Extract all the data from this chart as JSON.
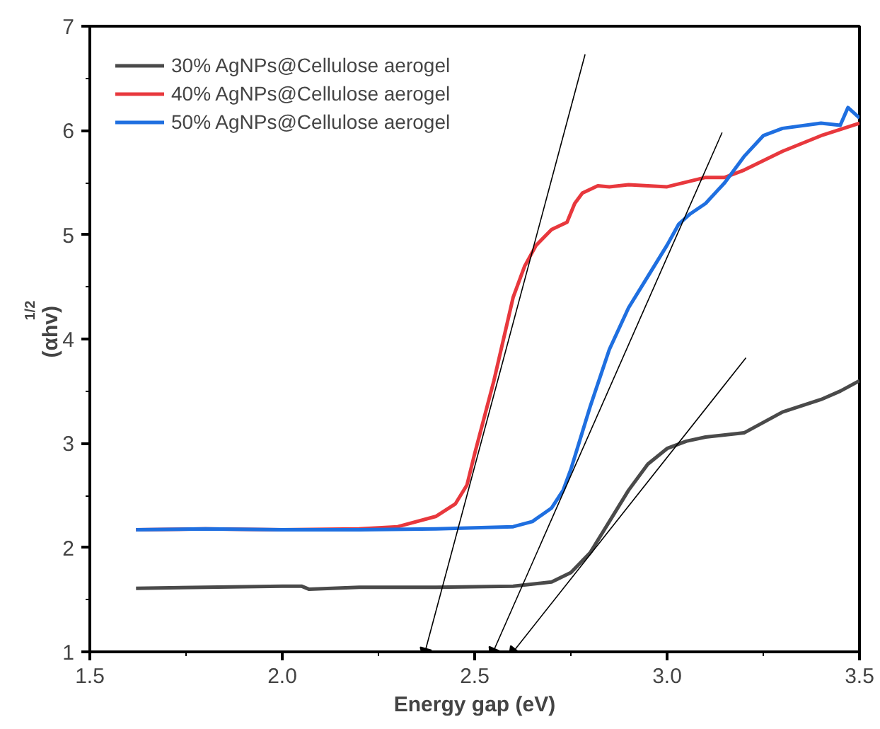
{
  "chart_data": {
    "type": "line",
    "xlabel": "Energy gap (eV)",
    "ylabel": "(αhv)$^{1/2}$",
    "xlim": [
      1.5,
      3.5
    ],
    "ylim": [
      1,
      7
    ],
    "xticks": [
      1.5,
      {
        "value": 2,
        "label": "2.0"
      },
      2.5,
      {
        "value": 3,
        "label": "3.0"
      },
      3.5
    ],
    "yticks": [
      1,
      2,
      3,
      4,
      5,
      6,
      7
    ],
    "grid": false,
    "legend": "top left",
    "marker": "none",
    "line_style": "solid",
    "series": [
      {
        "name": "30% AgNPs@Cellulose aerogel",
        "color": "#4a4a4a",
        "x": [
          1.62,
          1.8,
          2.0,
          2.05,
          2.07,
          2.2,
          2.4,
          2.6,
          2.7,
          2.75,
          2.8,
          2.85,
          2.9,
          2.95,
          3.0,
          3.05,
          3.1,
          3.2,
          3.25,
          3.3,
          3.4,
          3.45,
          3.5
        ],
        "values": [
          1.61,
          1.62,
          1.63,
          1.63,
          1.6,
          1.62,
          1.62,
          1.63,
          1.67,
          1.76,
          1.95,
          2.25,
          2.55,
          2.8,
          2.95,
          3.02,
          3.06,
          3.1,
          3.2,
          3.3,
          3.42,
          3.5,
          3.6
        ]
      },
      {
        "name": "40% AgNPs@Cellulose aerogel",
        "color": "#e8383d",
        "x": [
          1.62,
          1.8,
          2.0,
          2.2,
          2.3,
          2.4,
          2.45,
          2.48,
          2.5,
          2.55,
          2.6,
          2.63,
          2.66,
          2.7,
          2.74,
          2.76,
          2.78,
          2.82,
          2.85,
          2.9,
          3.0,
          3.1,
          3.15,
          3.2,
          3.3,
          3.4,
          3.5
        ],
        "values": [
          2.17,
          2.18,
          2.17,
          2.18,
          2.2,
          2.3,
          2.42,
          2.6,
          2.9,
          3.6,
          4.4,
          4.7,
          4.9,
          5.05,
          5.12,
          5.3,
          5.4,
          5.47,
          5.46,
          5.48,
          5.46,
          5.55,
          5.55,
          5.62,
          5.8,
          5.95,
          6.07
        ]
      },
      {
        "name": "50% AgNPs@Cellulose aerogel",
        "color": "#1f6fe0",
        "x": [
          1.62,
          1.8,
          2.0,
          2.2,
          2.4,
          2.6,
          2.65,
          2.7,
          2.73,
          2.75,
          2.8,
          2.85,
          2.9,
          2.95,
          3.0,
          3.03,
          3.06,
          3.1,
          3.15,
          3.2,
          3.25,
          3.3,
          3.4,
          3.45,
          3.47,
          3.5
        ],
        "values": [
          2.17,
          2.18,
          2.17,
          2.17,
          2.18,
          2.2,
          2.25,
          2.38,
          2.55,
          2.75,
          3.35,
          3.9,
          4.3,
          4.6,
          4.9,
          5.1,
          5.2,
          5.3,
          5.5,
          5.75,
          5.95,
          6.02,
          6.07,
          6.05,
          6.22,
          6.12
        ]
      },
      {
        "type": "line",
        "color": "#000000",
        "marker": "triangle",
        "x": [
          2.371,
          2.787
        ],
        "values": [
          1,
          6.73
        ]
      },
      {
        "type": "line",
        "color": "#000000",
        "marker": "triangle",
        "x": [
          2.548,
          3.143
        ],
        "values": [
          1,
          5.98
        ]
      },
      {
        "type": "line",
        "color": "#000000",
        "marker": "triangle",
        "x": [
          2.6,
          3.205
        ],
        "values": [
          1,
          3.82
        ]
      }
    ]
  }
}
